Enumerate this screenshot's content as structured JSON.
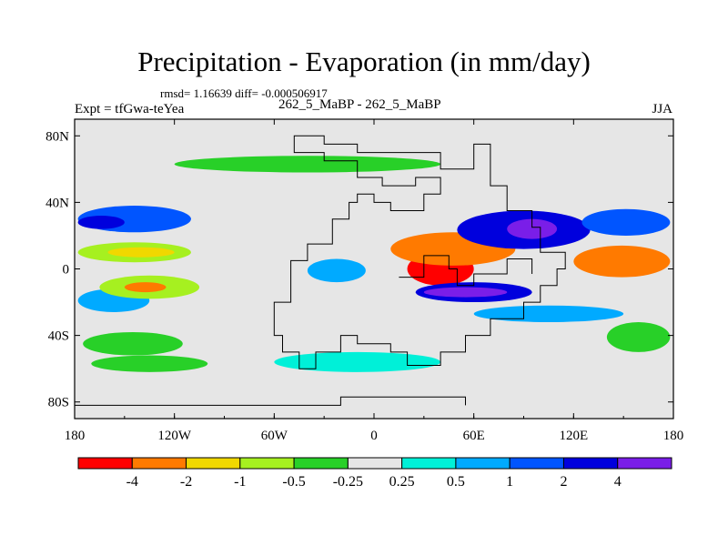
{
  "chart_data": {
    "type": "heatmap",
    "title": "Precipitation - Evaporation (in mm/day)",
    "stats_line": "rmsd= 1.16639 diff= -0.000506917",
    "left_label": "Expt = tfGwa-teYea",
    "center_label": "262_5_MaBP - 262_5_MaBP",
    "right_label": "JJA",
    "xlim": [
      -180,
      180
    ],
    "ylim": [
      -90,
      90
    ],
    "x_ticks": [
      {
        "value": -180,
        "label": "180"
      },
      {
        "value": -120,
        "label": "120W"
      },
      {
        "value": -60,
        "label": "60W"
      },
      {
        "value": 0,
        "label": "0"
      },
      {
        "value": 60,
        "label": "60E"
      },
      {
        "value": 120,
        "label": "120E"
      },
      {
        "value": 180,
        "label": "180"
      }
    ],
    "y_ticks": [
      {
        "value": 80,
        "label": "80N"
      },
      {
        "value": 40,
        "label": "40N"
      },
      {
        "value": 0,
        "label": "0"
      },
      {
        "value": -40,
        "label": "40S"
      },
      {
        "value": -80,
        "label": "80S"
      }
    ],
    "colorbar": {
      "levels": [
        "-4",
        "-2",
        "-1",
        "-0.5",
        "-0.25",
        "0.25",
        "0.5",
        "1",
        "2",
        "4"
      ],
      "colors": [
        "#ff0000",
        "#ff7a00",
        "#f0d800",
        "#a6f020",
        "#28d028",
        "#e6e6e6",
        "#00f0d8",
        "#00aaff",
        "#0055ff",
        "#0000dd",
        "#7a1ee8"
      ]
    },
    "fields": [
      {
        "name": "ne-pacific-wet",
        "level": 8,
        "lon": [
          -178,
          -110
        ],
        "lat": [
          22,
          38
        ]
      },
      {
        "name": "n-pacific-wet-core",
        "level": 9,
        "lon": [
          -178,
          -150
        ],
        "lat": [
          24,
          32
        ]
      },
      {
        "name": "n-pacific-dry",
        "level": 3,
        "lon": [
          -178,
          -110
        ],
        "lat": [
          4,
          16
        ]
      },
      {
        "name": "n-pacific-dry-core",
        "level": 2,
        "lon": [
          -160,
          -120
        ],
        "lat": [
          7,
          13
        ]
      },
      {
        "name": "s-pacific-wet",
        "level": 7,
        "lon": [
          -178,
          -135
        ],
        "lat": [
          -26,
          -12
        ]
      },
      {
        "name": "s-pacific-dry",
        "level": 3,
        "lon": [
          -165,
          -105
        ],
        "lat": [
          -18,
          -4
        ]
      },
      {
        "name": "s-pacific-dry-core",
        "level": 1,
        "lon": [
          -150,
          -125
        ],
        "lat": [
          -14,
          -8
        ]
      },
      {
        "name": "s-pacific-far-dry",
        "level": 4,
        "lon": [
          -175,
          -115
        ],
        "lat": [
          -52,
          -38
        ]
      },
      {
        "name": "tethys-dry",
        "level": 0,
        "lon": [
          20,
          60
        ],
        "lat": [
          -10,
          10
        ]
      },
      {
        "name": "tethys-dry-halo",
        "level": 1,
        "lon": [
          10,
          85
        ],
        "lat": [
          2,
          22
        ]
      },
      {
        "name": "asia-monsoon-wet",
        "level": 9,
        "lon": [
          50,
          130
        ],
        "lat": [
          12,
          35
        ]
      },
      {
        "name": "asia-monsoon-wet-core",
        "level": 10,
        "lon": [
          80,
          110
        ],
        "lat": [
          18,
          30
        ]
      },
      {
        "name": "tethys-south-wet",
        "level": 9,
        "lon": [
          25,
          95
        ],
        "lat": [
          -20,
          -8
        ]
      },
      {
        "name": "tethys-south-wet-core",
        "level": 10,
        "lon": [
          30,
          80
        ],
        "lat": [
          -17,
          -11
        ]
      },
      {
        "name": "se-pacific-dry",
        "level": 1,
        "lon": [
          120,
          178
        ],
        "lat": [
          -5,
          14
        ]
      },
      {
        "name": "se-pacific-wet",
        "level": 8,
        "lon": [
          125,
          178
        ],
        "lat": [
          20,
          36
        ]
      },
      {
        "name": "s-indian-wet",
        "level": 7,
        "lon": [
          60,
          150
        ],
        "lat": [
          -32,
          -22
        ]
      },
      {
        "name": "s-panthalassa-dry",
        "level": 4,
        "lon": [
          140,
          178
        ],
        "lat": [
          -50,
          -32
        ]
      },
      {
        "name": "pangea-equator-wet",
        "level": 7,
        "lon": [
          -40,
          -5
        ],
        "lat": [
          -8,
          6
        ]
      },
      {
        "name": "high-lat-n-dry",
        "level": 4,
        "lon": [
          -120,
          40
        ],
        "lat": [
          58,
          68
        ]
      },
      {
        "name": "south-pole-dry",
        "level": 4,
        "lon": [
          -170,
          -100
        ],
        "lat": [
          -62,
          -52
        ]
      },
      {
        "name": "south-wet-patch",
        "level": 6,
        "lon": [
          -60,
          40
        ],
        "lat": [
          -62,
          -50
        ]
      }
    ],
    "continent_outline": "Pangaea continental boundary (black line)"
  }
}
